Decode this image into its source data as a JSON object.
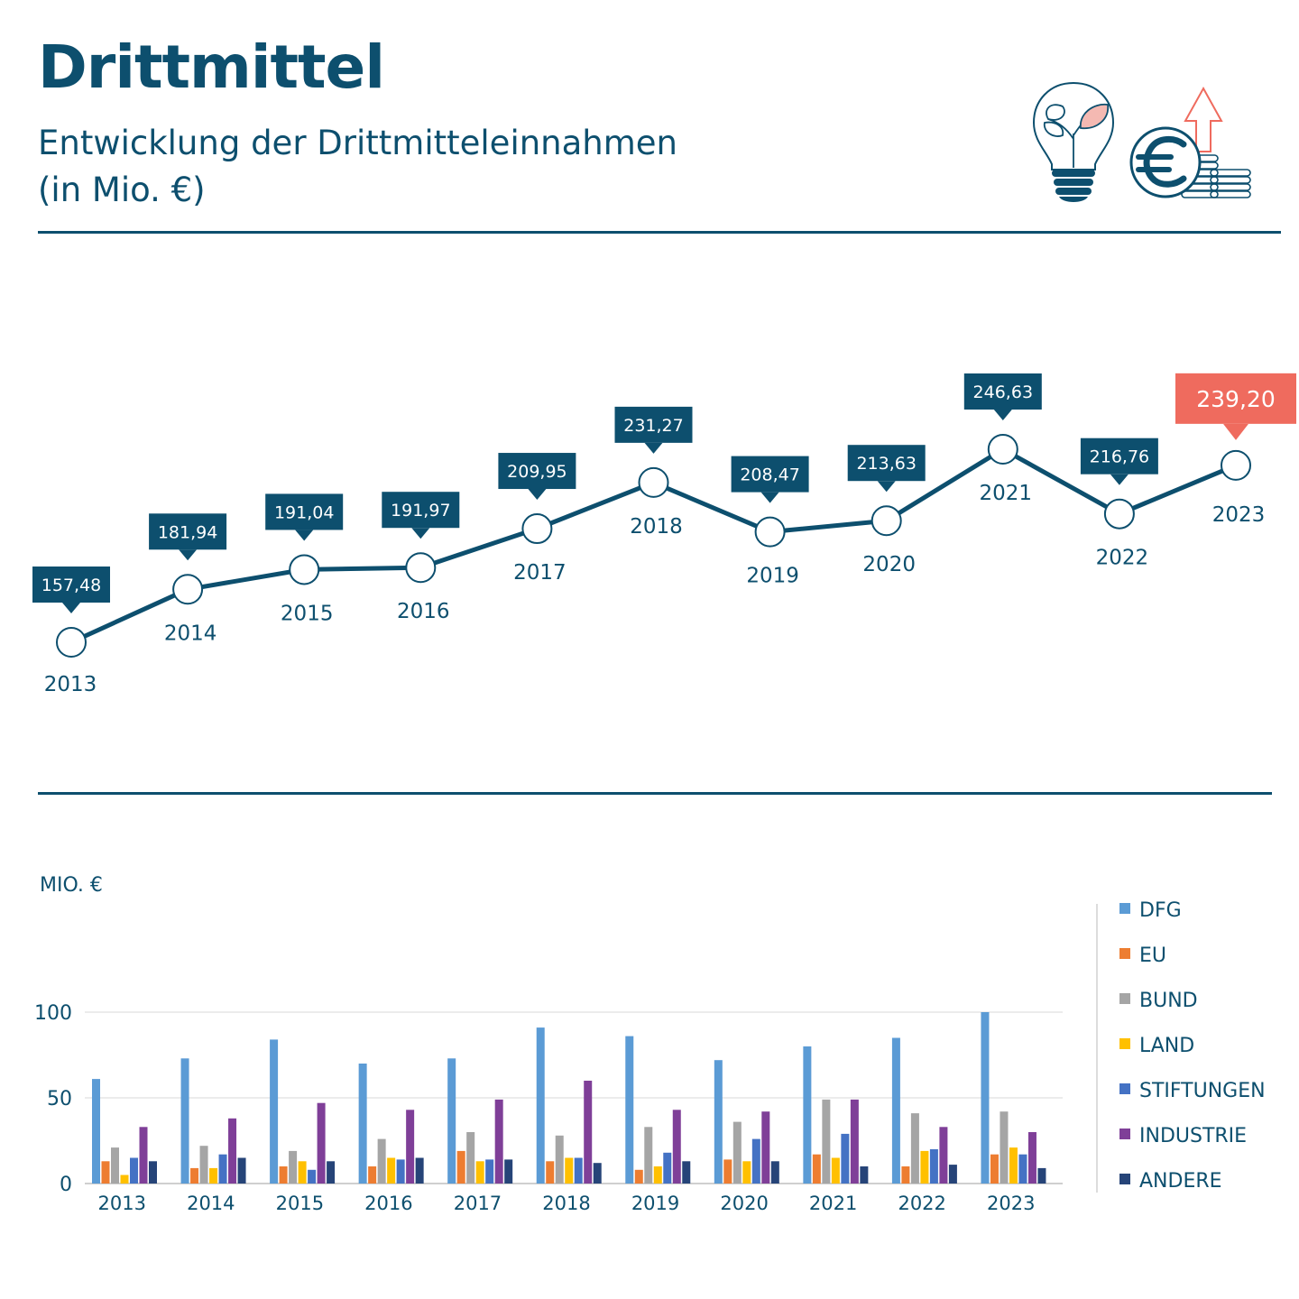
{
  "header": {
    "title": "Drittmittel",
    "subtitle_line1": "Entwicklung der Drittmitteleinnahmen",
    "subtitle_line2": "(in Mio. €)"
  },
  "icons": [
    "lightbulb-plant-icon",
    "euro-coins-arrow-icon"
  ],
  "colors": {
    "primary": "#0d4f6e",
    "highlight": "#ef6b5e",
    "DFG": "#5b9bd5",
    "EU": "#ed7d31",
    "BUND": "#a5a5a5",
    "LAND": "#ffc000",
    "STIFTUNGEN": "#4472c4",
    "INDUSTRIE": "#7f3f98",
    "ANDERE": "#264478"
  },
  "chart_data": [
    {
      "type": "line",
      "x": [
        "2013",
        "2014",
        "2015",
        "2016",
        "2017",
        "2018",
        "2019",
        "2020",
        "2021",
        "2022",
        "2023"
      ],
      "values": [
        157.48,
        181.94,
        191.04,
        191.97,
        209.95,
        231.27,
        208.47,
        213.63,
        246.63,
        216.76,
        239.2
      ],
      "data_labels": [
        "157,48",
        "181,94",
        "191,04",
        "191,97",
        "209,95",
        "231,27",
        "208,47",
        "213,63",
        "246,63",
        "216,76",
        "239,20"
      ],
      "highlight_index": 10,
      "title": "",
      "xlabel": "",
      "ylabel": ""
    },
    {
      "type": "bar",
      "categories": [
        "2013",
        "2014",
        "2015",
        "2016",
        "2017",
        "2018",
        "2019",
        "2020",
        "2021",
        "2022",
        "2023"
      ],
      "ylabel": "MIO. €",
      "ylim": [
        0,
        100
      ],
      "yticks": [
        0,
        50,
        100
      ],
      "legend_position": "right",
      "series": [
        {
          "name": "DFG",
          "values": [
            61,
            73,
            84,
            70,
            73,
            91,
            86,
            72,
            80,
            85,
            100
          ]
        },
        {
          "name": "EU",
          "values": [
            13,
            9,
            10,
            10,
            19,
            13,
            8,
            14,
            17,
            10,
            17
          ]
        },
        {
          "name": "BUND",
          "values": [
            21,
            22,
            19,
            26,
            30,
            28,
            33,
            36,
            49,
            41,
            42
          ]
        },
        {
          "name": "LAND",
          "values": [
            5,
            9,
            13,
            15,
            13,
            15,
            10,
            13,
            15,
            19,
            21
          ]
        },
        {
          "name": "STIFTUNGEN",
          "values": [
            15,
            17,
            8,
            14,
            14,
            15,
            18,
            26,
            29,
            20,
            17
          ]
        },
        {
          "name": "INDUSTRIE",
          "values": [
            33,
            38,
            47,
            43,
            49,
            60,
            43,
            42,
            49,
            33,
            30
          ]
        },
        {
          "name": "ANDERE",
          "values": [
            13,
            15,
            13,
            15,
            14,
            12,
            13,
            13,
            10,
            11,
            9
          ]
        }
      ]
    }
  ]
}
